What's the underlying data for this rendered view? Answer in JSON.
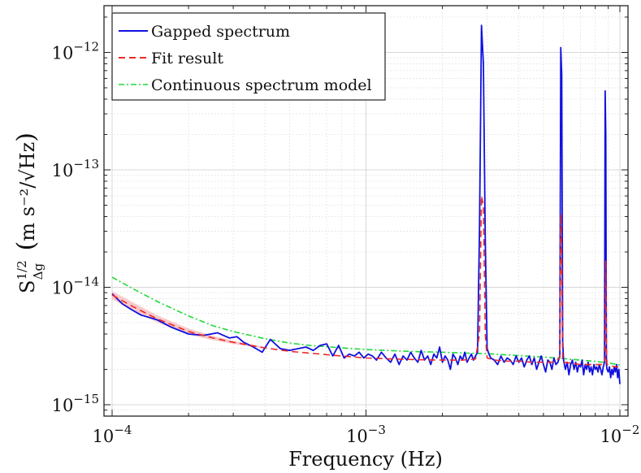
{
  "chart_data": {
    "type": "line",
    "title": "",
    "xlabel": "Frequency (Hz)",
    "ylabel": "S_Δg^{1/2} (m s⁻²/√Hz)",
    "ylabel_parts": {
      "main": "S",
      "sub": "Δg",
      "sup": "1/2",
      "units": "m s⁻²/√Hz"
    },
    "xscale": "log",
    "yscale": "log",
    "xlim": [
      0.0001,
      0.01
    ],
    "ylim": [
      8e-16,
      2.5e-12
    ],
    "grid": true,
    "x_ticks": [
      {
        "value": 0.0001,
        "base": "10",
        "exp": "−4"
      },
      {
        "value": 0.001,
        "base": "10",
        "exp": "−3"
      },
      {
        "value": 0.01,
        "base": "10",
        "exp": "−2"
      }
    ],
    "y_ticks": [
      {
        "value": 1e-15,
        "base": "10",
        "exp": "−15"
      },
      {
        "value": 1e-14,
        "base": "10",
        "exp": "−14"
      },
      {
        "value": 1e-13,
        "base": "10",
        "exp": "−13"
      },
      {
        "value": 1e-12,
        "base": "10",
        "exp": "−12"
      }
    ],
    "legend_position": "top-left",
    "series": [
      {
        "name": "Gapped spectrum",
        "color": "#1010e0",
        "style": "solid",
        "x": [
          0.0001,
          0.00011,
          0.00012,
          0.00013,
          0.00015,
          0.00017,
          0.0002,
          0.00023,
          0.00026,
          0.00029,
          0.00031,
          0.00033,
          0.00036,
          0.00039,
          0.00042,
          0.00046,
          0.0005,
          0.00054,
          0.00058,
          0.00062,
          0.00066,
          0.0007,
          0.00074,
          0.00078,
          0.00082,
          0.00086,
          0.0009,
          0.00094,
          0.00098,
          0.00102,
          0.00106,
          0.0011,
          0.00115,
          0.0012,
          0.00125,
          0.0013,
          0.00135,
          0.0014,
          0.00145,
          0.0015,
          0.00155,
          0.0016,
          0.00165,
          0.0017,
          0.00175,
          0.0018,
          0.00185,
          0.0019,
          0.00195,
          0.002,
          0.00205,
          0.0021,
          0.00215,
          0.0022,
          0.00225,
          0.0023,
          0.00235,
          0.0024,
          0.00245,
          0.0025,
          0.00255,
          0.0026,
          0.00265,
          0.0027,
          0.00275,
          0.0028,
          0.00285,
          0.0029,
          0.00295,
          0.003,
          0.00305,
          0.0031,
          0.0032,
          0.0033,
          0.0034,
          0.0035,
          0.0036,
          0.0037,
          0.0038,
          0.0039,
          0.004,
          0.0041,
          0.0042,
          0.0043,
          0.0044,
          0.0045,
          0.0046,
          0.0047,
          0.0048,
          0.0049,
          0.005,
          0.0051,
          0.0052,
          0.0053,
          0.0054,
          0.0055,
          0.0056,
          0.0057,
          0.0058,
          0.00585,
          0.0059,
          0.00595,
          0.006,
          0.0061,
          0.0062,
          0.0063,
          0.0064,
          0.0065,
          0.0066,
          0.0067,
          0.0068,
          0.0069,
          0.007,
          0.0071,
          0.0072,
          0.0073,
          0.0074,
          0.0075,
          0.0076,
          0.0077,
          0.0078,
          0.0079,
          0.008,
          0.0081,
          0.0082,
          0.0083,
          0.0084,
          0.0085,
          0.0086,
          0.0087,
          0.00875,
          0.0088,
          0.00885,
          0.0089,
          0.009,
          0.0091,
          0.0092,
          0.0093,
          0.0094,
          0.0095,
          0.0096,
          0.0097,
          0.0098,
          0.0099,
          0.01
        ],
        "y": [
          8.8e-15,
          7.2e-15,
          6.4e-15,
          5.8e-15,
          5.3e-15,
          4.6e-15,
          4e-15,
          3.9e-15,
          4.1e-15,
          3.7e-15,
          3.8e-15,
          3.4e-15,
          3.1e-15,
          2.8e-15,
          3.6e-15,
          3e-15,
          2.9e-15,
          3e-15,
          3.1e-15,
          2.9e-15,
          3.2e-15,
          3.3e-15,
          2.6e-15,
          3.2e-15,
          2.5e-15,
          2.7e-15,
          2.6e-15,
          2.8e-15,
          2.5e-15,
          2.7e-15,
          2.6e-15,
          2.4e-15,
          2.8e-15,
          2.5e-15,
          2.3e-15,
          2.7e-15,
          2.2e-15,
          2.6e-15,
          2.4e-15,
          2.8e-15,
          2.5e-15,
          2.3e-15,
          2.9e-15,
          2.4e-15,
          2.6e-15,
          2.2e-15,
          2.7e-15,
          2.5e-15,
          3.1e-15,
          2.3e-15,
          2.6e-15,
          2.4e-15,
          2e-15,
          2.7e-15,
          2.5e-15,
          2.2e-15,
          2.6e-15,
          2.4e-15,
          2.8e-15,
          2.3e-15,
          2.5e-15,
          2.7e-15,
          2.4e-15,
          2.6e-15,
          2.8e-15,
          3.2e-14,
          1.7e-12,
          8e-13,
          2.5e-14,
          3e-15,
          2.7e-15,
          2.5e-15,
          2.4e-15,
          2.2e-15,
          2.6e-15,
          2.3e-15,
          2.5e-15,
          2.4e-15,
          2.2e-15,
          2.6e-15,
          2.3e-15,
          2.5e-15,
          2.1e-15,
          2.4e-15,
          2.6e-15,
          2.2e-15,
          2.5e-15,
          2e-15,
          2.3e-15,
          2.6e-15,
          2.2e-15,
          1.9e-15,
          2.4e-15,
          2.3e-15,
          2e-15,
          2.5e-15,
          2.2e-15,
          2.3e-15,
          2.6e-15,
          1.1e-12,
          6.5e-13,
          3.5e-15,
          2.4e-15,
          2e-15,
          2.3e-15,
          1.8e-15,
          2.2e-15,
          2.4e-15,
          2e-15,
          2.3e-15,
          1.9e-15,
          2.2e-15,
          2.1e-15,
          2.4e-15,
          1.8e-15,
          2.2e-15,
          2e-15,
          2.3e-15,
          1.9e-15,
          2.1e-15,
          1.8e-15,
          2.2e-15,
          2e-15,
          2.1e-15,
          1.9e-15,
          2.2e-15,
          2e-15,
          1.8e-15,
          2.1e-15,
          2.3e-15,
          4.7e-13,
          2e-13,
          2.2e-15,
          2e-15,
          1.9e-15,
          2.1e-15,
          1.7e-15,
          2e-15,
          1.8e-15,
          2.1e-15,
          1.9e-15,
          2.2e-15,
          1.7e-15,
          2e-15,
          1.5e-15
        ]
      },
      {
        "name": "Fit result",
        "color": "#ee2a2a",
        "style": "dashed",
        "x": [
          0.0001,
          0.00012,
          0.00015,
          0.0002,
          0.00025,
          0.0003,
          0.0004,
          0.0005,
          0.0006,
          0.0008,
          0.001,
          0.0013,
          0.0016,
          0.002,
          0.0024,
          0.0027,
          0.0028,
          0.00285,
          0.0029,
          0.00295,
          0.003,
          0.0032,
          0.0036,
          0.004,
          0.0045,
          0.005,
          0.0055,
          0.0058,
          0.00585,
          0.0059,
          0.00595,
          0.006,
          0.0065,
          0.007,
          0.0075,
          0.008,
          0.0086,
          0.00875,
          0.0088,
          0.00885,
          0.0089,
          0.0092,
          0.0096,
          0.01
        ],
        "y": [
          8.6e-15,
          6.9e-15,
          5.4e-15,
          4.2e-15,
          3.7e-15,
          3.4e-15,
          3.05e-15,
          2.85e-15,
          2.75e-15,
          2.6e-15,
          2.5e-15,
          2.45e-15,
          2.42e-15,
          2.4e-15,
          2.4e-15,
          2.45e-15,
          4e-15,
          6e-14,
          5e-14,
          4e-15,
          2.5e-15,
          2.4e-15,
          2.35e-15,
          2.35e-15,
          2.3e-15,
          2.3e-15,
          2.3e-15,
          2.5e-15,
          4.2e-14,
          1.5e-14,
          2.5e-15,
          2.3e-15,
          2.25e-15,
          2.2e-15,
          2.2e-15,
          2.2e-15,
          2.2e-15,
          2.5e-15,
          1.7e-14,
          3e-15,
          2.2e-15,
          2.15e-15,
          2.1e-15,
          2.1e-15
        ]
      },
      {
        "name": "Continuous spectrum model",
        "color": "#1fd93a",
        "style": "dashdot",
        "x": [
          0.0001,
          0.00012,
          0.00015,
          0.0002,
          0.00025,
          0.0003,
          0.0004,
          0.0005,
          0.0006,
          0.0008,
          0.001,
          0.0013,
          0.0016,
          0.002,
          0.0025,
          0.003,
          0.004,
          0.005,
          0.006,
          0.007,
          0.008,
          0.009,
          0.01
        ],
        "y": [
          1.22e-14,
          9.8e-15,
          7.6e-15,
          5.7e-15,
          4.7e-15,
          4.2e-15,
          3.65e-15,
          3.35e-15,
          3.2e-15,
          3.05e-15,
          2.95e-15,
          2.88e-15,
          2.83e-15,
          2.8e-15,
          2.75e-15,
          2.72e-15,
          2.62e-15,
          2.55e-15,
          2.47e-15,
          2.4e-15,
          2.34e-15,
          2.27e-15,
          2.18e-15
        ]
      }
    ],
    "fit_band": {
      "color": "#f6b4b4",
      "x": [
        0.0001,
        0.00012,
        0.00015,
        0.0002,
        0.00025,
        0.0003,
        0.0004
      ],
      "upper": [
        9.3e-15,
        7.5e-15,
        5.8e-15,
        4.45e-15,
        3.85e-15,
        3.5e-15,
        3.1e-15
      ],
      "lower": [
        7.9e-15,
        6.4e-15,
        5.05e-15,
        3.95e-15,
        3.55e-15,
        3.3e-15,
        3e-15
      ]
    }
  }
}
